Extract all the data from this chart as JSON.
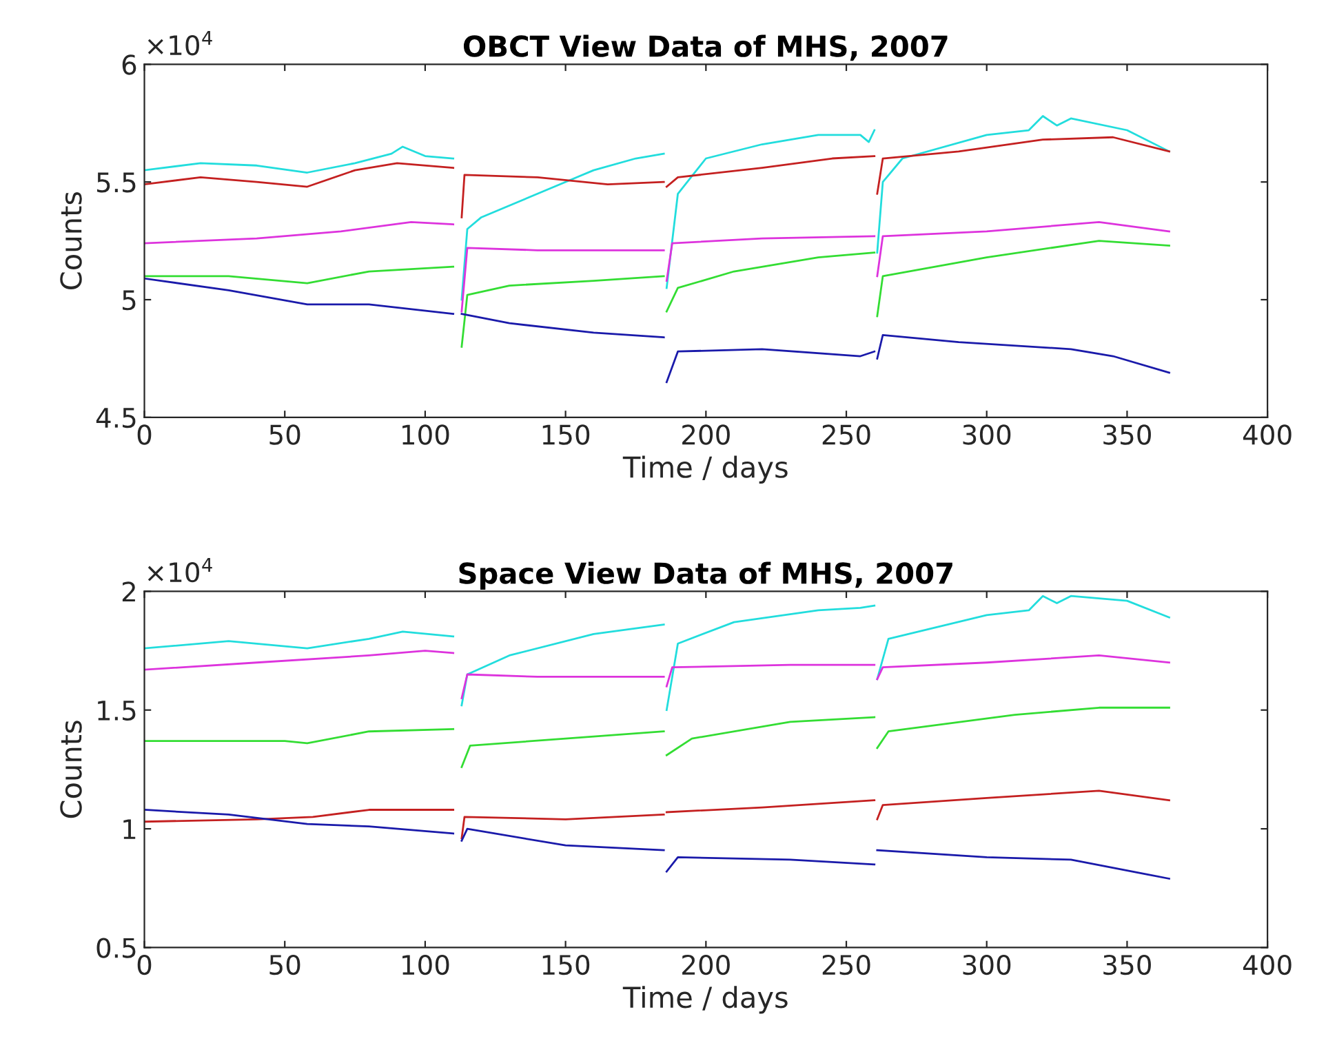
{
  "chart_data": [
    {
      "type": "line",
      "title": "OBCT View Data of MHS, 2007",
      "xlabel": "Time / days",
      "ylabel": "Counts",
      "annotations": [
        "×10$^{4}$"
      ],
      "xlim": [
        0,
        400
      ],
      "xticks": [
        0,
        50,
        100,
        150,
        200,
        250,
        300,
        350,
        400
      ],
      "ylim": [
        4.5,
        6
      ],
      "yticks": [
        4.5,
        5,
        5.5,
        6
      ],
      "series": [
        {
          "color": "#22dddd",
          "x": [
            0,
            20,
            40,
            58,
            75,
            88,
            92,
            100,
            110,
            111.5,
            113,
            115,
            120,
            140,
            160,
            175,
            185,
            185.5,
            186,
            190,
            200,
            220,
            240,
            255,
            258,
            260,
            260.5,
            261,
            263,
            270,
            300,
            315,
            320,
            325,
            330,
            350,
            365
          ],
          "values": [
            5.55,
            5.58,
            5.57,
            5.54,
            5.58,
            5.62,
            5.65,
            5.61,
            5.6,
            null,
            5.0,
            5.3,
            5.35,
            5.45,
            5.55,
            5.6,
            5.62,
            null,
            5.05,
            5.45,
            5.6,
            5.66,
            5.7,
            5.7,
            5.67,
            5.72,
            null,
            5.2,
            5.5,
            5.6,
            5.7,
            5.72,
            5.78,
            5.74,
            5.77,
            5.72,
            5.63
          ]
        },
        {
          "color": "#c42020",
          "x": [
            0,
            20,
            40,
            58,
            75,
            90,
            110,
            111.5,
            113,
            114,
            140,
            165,
            185,
            185.5,
            186,
            190,
            220,
            245,
            260,
            260.5,
            261,
            263,
            290,
            320,
            345,
            365
          ],
          "values": [
            5.49,
            5.52,
            5.5,
            5.48,
            5.55,
            5.58,
            5.56,
            null,
            5.35,
            5.53,
            5.52,
            5.49,
            5.5,
            null,
            5.48,
            5.52,
            5.56,
            5.6,
            5.61,
            null,
            5.45,
            5.6,
            5.63,
            5.68,
            5.69,
            5.63
          ]
        },
        {
          "color": "#dd33dd",
          "x": [
            0,
            40,
            70,
            95,
            110,
            111.5,
            113,
            115,
            140,
            185,
            185.5,
            186,
            188,
            220,
            260,
            260.5,
            261,
            263,
            300,
            340,
            365
          ],
          "values": [
            5.24,
            5.26,
            5.29,
            5.33,
            5.32,
            null,
            4.95,
            5.22,
            5.21,
            5.21,
            null,
            5.08,
            5.24,
            5.26,
            5.27,
            null,
            5.1,
            5.27,
            5.29,
            5.33,
            5.29
          ]
        },
        {
          "color": "#33dd33",
          "x": [
            0,
            30,
            58,
            80,
            110,
            111.5,
            113,
            115,
            130,
            160,
            185,
            185.5,
            186,
            190,
            210,
            240,
            260,
            260.5,
            261,
            263,
            300,
            340,
            365
          ],
          "values": [
            5.1,
            5.1,
            5.07,
            5.12,
            5.14,
            null,
            4.8,
            5.02,
            5.06,
            5.08,
            5.1,
            null,
            4.95,
            5.05,
            5.12,
            5.18,
            5.2,
            null,
            4.93,
            5.1,
            5.18,
            5.25,
            5.23
          ]
        },
        {
          "color": "#1a1aaa",
          "x": [
            0,
            30,
            58,
            80,
            110,
            111.5,
            113,
            130,
            160,
            185,
            185.5,
            186,
            190,
            220,
            255,
            260,
            260.5,
            261,
            263,
            290,
            330,
            345,
            365
          ],
          "values": [
            5.09,
            5.04,
            4.98,
            4.98,
            4.94,
            null,
            4.94,
            4.9,
            4.86,
            4.84,
            null,
            4.65,
            4.78,
            4.79,
            4.76,
            4.78,
            null,
            4.75,
            4.85,
            4.82,
            4.79,
            4.76,
            4.69
          ]
        }
      ]
    },
    {
      "type": "line",
      "title": "Space View Data of MHS, 2007",
      "xlabel": "Time / days",
      "ylabel": "Counts",
      "annotations": [
        "×10$^{4}$"
      ],
      "xlim": [
        0,
        400
      ],
      "xticks": [
        0,
        50,
        100,
        150,
        200,
        250,
        300,
        350,
        400
      ],
      "ylim": [
        0.5,
        2
      ],
      "yticks": [
        0.5,
        1,
        1.5,
        2
      ],
      "series": [
        {
          "color": "#22dddd",
          "x": [
            0,
            30,
            58,
            80,
            92,
            110,
            111.5,
            113,
            115,
            130,
            160,
            185,
            185.5,
            186,
            190,
            210,
            240,
            255,
            260,
            260.5,
            261,
            265,
            300,
            315,
            320,
            325,
            330,
            350,
            365
          ],
          "values": [
            1.76,
            1.79,
            1.76,
            1.8,
            1.83,
            1.81,
            null,
            1.52,
            1.65,
            1.73,
            1.82,
            1.86,
            null,
            1.5,
            1.78,
            1.87,
            1.92,
            1.93,
            1.94,
            null,
            1.63,
            1.8,
            1.9,
            1.92,
            1.98,
            1.95,
            1.98,
            1.96,
            1.89
          ]
        },
        {
          "color": "#dd33dd",
          "x": [
            0,
            40,
            80,
            100,
            110,
            111.5,
            113,
            115,
            140,
            185,
            185.5,
            186,
            188,
            230,
            260,
            260.5,
            261,
            263,
            300,
            340,
            365
          ],
          "values": [
            1.67,
            1.7,
            1.73,
            1.75,
            1.74,
            null,
            1.55,
            1.65,
            1.64,
            1.64,
            null,
            1.6,
            1.68,
            1.69,
            1.69,
            null,
            1.63,
            1.68,
            1.7,
            1.73,
            1.7
          ]
        },
        {
          "color": "#33dd33",
          "x": [
            0,
            50,
            58,
            80,
            110,
            111.5,
            113,
            116,
            150,
            185,
            185.5,
            186,
            195,
            230,
            260,
            260.5,
            261,
            265,
            310,
            340,
            365
          ],
          "values": [
            1.37,
            1.37,
            1.36,
            1.41,
            1.42,
            null,
            1.26,
            1.35,
            1.38,
            1.41,
            null,
            1.31,
            1.38,
            1.45,
            1.47,
            null,
            1.34,
            1.41,
            1.48,
            1.51,
            1.51
          ]
        },
        {
          "color": "#c42020",
          "x": [
            0,
            40,
            60,
            80,
            110,
            111.5,
            113,
            114,
            150,
            185,
            185.5,
            186,
            220,
            260,
            260.5,
            261,
            263,
            300,
            340,
            365
          ],
          "values": [
            1.03,
            1.04,
            1.05,
            1.08,
            1.08,
            null,
            0.96,
            1.05,
            1.04,
            1.06,
            null,
            1.07,
            1.09,
            1.12,
            null,
            1.04,
            1.1,
            1.13,
            1.16,
            1.12
          ]
        },
        {
          "color": "#1a1aaa",
          "x": [
            0,
            30,
            58,
            80,
            110,
            111.5,
            113,
            115,
            150,
            185,
            185.5,
            186,
            190,
            230,
            260,
            260.5,
            261,
            300,
            330,
            365
          ],
          "values": [
            1.08,
            1.06,
            1.02,
            1.01,
            0.98,
            null,
            0.95,
            1.0,
            0.93,
            0.91,
            null,
            0.82,
            0.88,
            0.87,
            0.85,
            null,
            0.91,
            0.88,
            0.87,
            0.79
          ]
        }
      ]
    }
  ]
}
